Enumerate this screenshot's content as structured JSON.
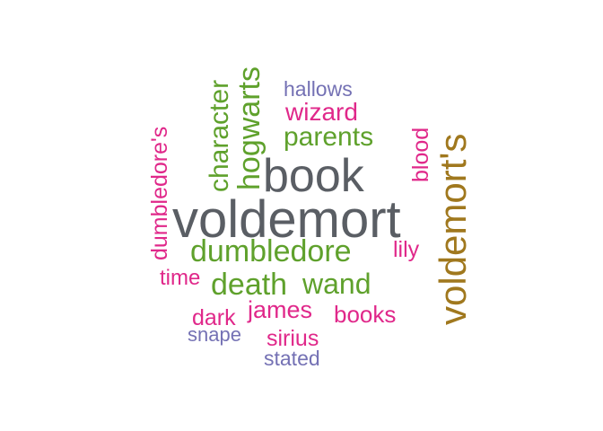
{
  "colors": {
    "gray": "#5a5e64",
    "green": "#5fa12c",
    "pink": "#e0288a",
    "purple": "#7471b4",
    "brown": "#a0781e"
  },
  "words": [
    {
      "text": "voldemort",
      "color": "gray",
      "orientation": "horizontal"
    },
    {
      "text": "book",
      "color": "gray",
      "orientation": "horizontal"
    },
    {
      "text": "voldemort's",
      "color": "brown",
      "orientation": "vertical"
    },
    {
      "text": "dumbledore",
      "color": "green",
      "orientation": "horizontal"
    },
    {
      "text": "death",
      "color": "green",
      "orientation": "horizontal"
    },
    {
      "text": "wand",
      "color": "green",
      "orientation": "horizontal"
    },
    {
      "text": "hogwarts",
      "color": "green",
      "orientation": "vertical"
    },
    {
      "text": "character",
      "color": "green",
      "orientation": "vertical"
    },
    {
      "text": "parents",
      "color": "green",
      "orientation": "horizontal"
    },
    {
      "text": "wizard",
      "color": "pink",
      "orientation": "horizontal"
    },
    {
      "text": "hallows",
      "color": "purple",
      "orientation": "horizontal"
    },
    {
      "text": "dumbledore's",
      "color": "pink",
      "orientation": "vertical"
    },
    {
      "text": "blood",
      "color": "pink",
      "orientation": "vertical"
    },
    {
      "text": "lily",
      "color": "pink",
      "orientation": "horizontal"
    },
    {
      "text": "time",
      "color": "pink",
      "orientation": "horizontal"
    },
    {
      "text": "james",
      "color": "pink",
      "orientation": "horizontal"
    },
    {
      "text": "books",
      "color": "pink",
      "orientation": "horizontal"
    },
    {
      "text": "dark",
      "color": "pink",
      "orientation": "horizontal"
    },
    {
      "text": "sirius",
      "color": "pink",
      "orientation": "horizontal"
    },
    {
      "text": "snape",
      "color": "purple",
      "orientation": "horizontal"
    },
    {
      "text": "stated",
      "color": "purple",
      "orientation": "horizontal"
    }
  ]
}
